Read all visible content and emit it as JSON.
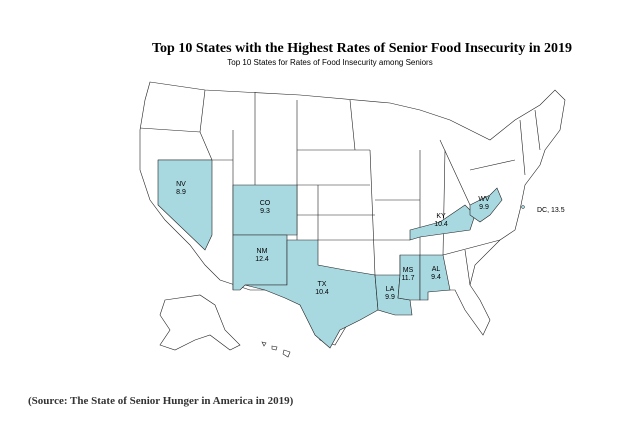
{
  "title": "Top 10 States with the Highest Rates of Senior Food Insecurity in 2019",
  "subtitle": "Top 10 States for Rates of Food Insecurity among Seniors",
  "states": [
    {
      "abbr": "NV",
      "value": 8.9
    },
    {
      "abbr": "CO",
      "value": 9.3
    },
    {
      "abbr": "NM",
      "value": 12.4
    },
    {
      "abbr": "TX",
      "value": 10.4
    },
    {
      "abbr": "LA",
      "value": 9.9
    },
    {
      "abbr": "MS",
      "value": 11.7
    },
    {
      "abbr": "AL",
      "value": 9.4
    },
    {
      "abbr": "KY",
      "value": 10.4
    },
    {
      "abbr": "WV",
      "value": 9.9
    }
  ],
  "dc": {
    "label": "DC, 13.5",
    "value": 13.5
  },
  "highlight_color": "#a8d8e0",
  "source": "(Source: The State of Senior Hunger in America in 2019)"
}
